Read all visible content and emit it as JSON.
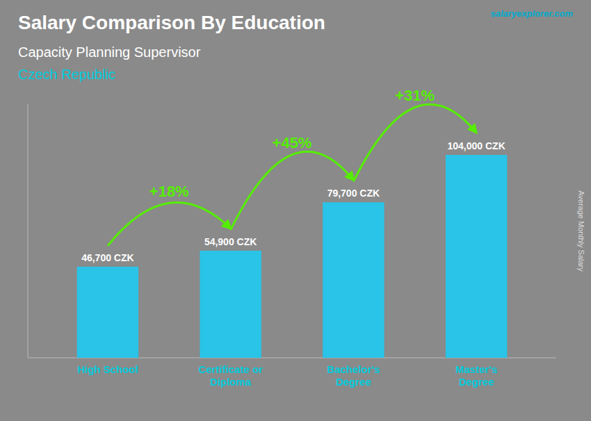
{
  "chart_data": {
    "type": "bar",
    "title": "Salary Comparison By Education",
    "subtitle": [
      "Capacity Planning Supervisor",
      "Czech Republic"
    ],
    "source": "salaryexplorer.com",
    "y_label": "Average Monthly Salary",
    "categories": [
      "High School",
      "Certificate or\nDiploma",
      "Bachelor's\nDegree",
      "Master's\nDegree"
    ],
    "values": [
      46700,
      54900,
      79700,
      104000
    ],
    "value_labels": [
      "46,700 CZK",
      "54,900 CZK",
      "79,700 CZK",
      "104,000 CZK"
    ],
    "data_labels": true,
    "color": "#29c4e8",
    "annotations": [
      {
        "text": "+18%",
        "color": "#55ee00"
      },
      {
        "text": "+45%",
        "color": "#55ee00"
      },
      {
        "text": "+31%",
        "color": "#55ee00"
      }
    ],
    "ylim": [
      0,
      130000
    ],
    "yticks": [],
    "tick_labels": "x",
    "grid": false
  }
}
